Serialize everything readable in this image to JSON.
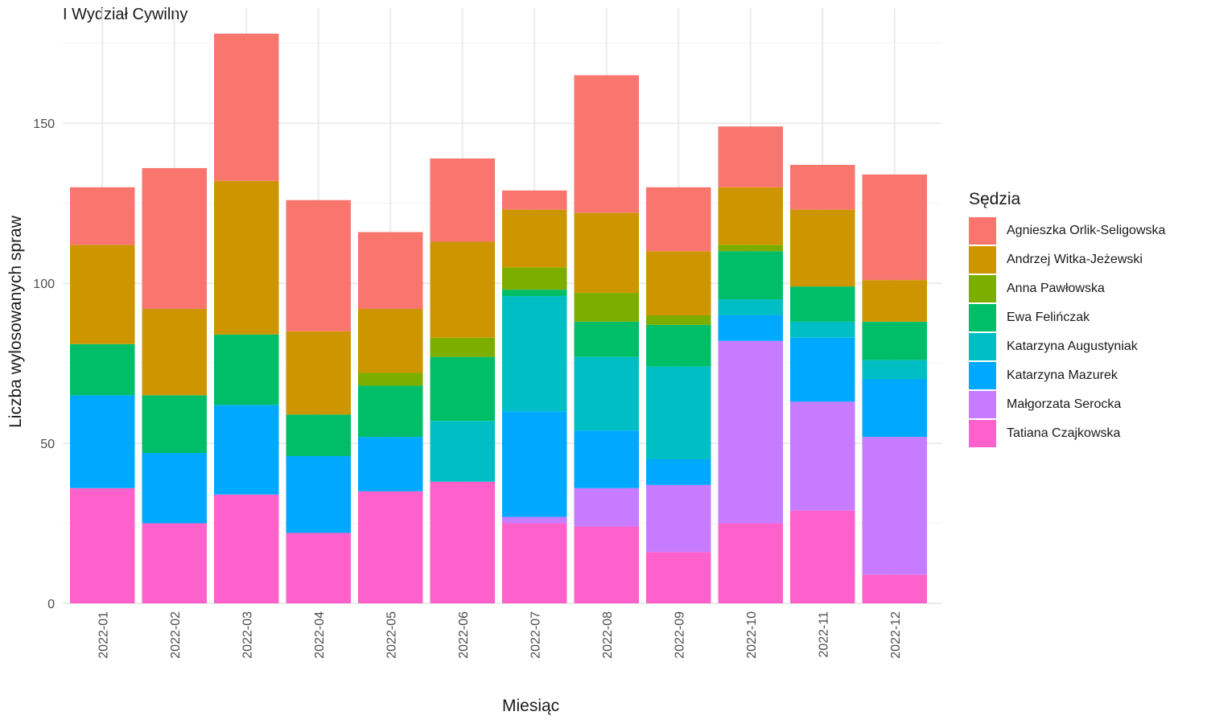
{
  "page_title": "I Wydział Cywilny",
  "chart_data": {
    "type": "bar",
    "stacked": true,
    "xlabel": "Miesiąc",
    "ylabel": "Liczba wylosowanych spraw",
    "ylim": [
      0,
      186
    ],
    "y_ticks": [
      0,
      50,
      100,
      150
    ],
    "grid": true,
    "legend_title": "Sędzia",
    "legend_position": "right",
    "categories": [
      "2022-01",
      "2022-02",
      "2022-03",
      "2022-04",
      "2022-05",
      "2022-06",
      "2022-07",
      "2022-08",
      "2022-09",
      "2022-10",
      "2022-11",
      "2022-12"
    ],
    "series": [
      {
        "name": "Tatiana Czajkowska",
        "color": "#FF61CC",
        "values": [
          36,
          25,
          34,
          22,
          35,
          38,
          25,
          24,
          16,
          25,
          29,
          9
        ]
      },
      {
        "name": "Małgorzata Serocka",
        "color": "#C77CFF",
        "values": [
          0,
          0,
          0,
          0,
          0,
          0,
          2,
          12,
          21,
          57,
          34,
          43
        ]
      },
      {
        "name": "Katarzyna Mazurek",
        "color": "#00A9FF",
        "values": [
          29,
          22,
          28,
          24,
          17,
          0,
          33,
          18,
          8,
          8,
          20,
          18
        ]
      },
      {
        "name": "Katarzyna Augustyniak",
        "color": "#00BFC4",
        "values": [
          0,
          0,
          0,
          0,
          0,
          19,
          36,
          23,
          29,
          5,
          5,
          6
        ]
      },
      {
        "name": "Ewa Felińczak",
        "color": "#00BE67",
        "values": [
          16,
          18,
          22,
          13,
          16,
          20,
          2,
          11,
          13,
          15,
          11,
          12
        ]
      },
      {
        "name": "Anna Pawłowska",
        "color": "#7CAE00",
        "values": [
          0,
          0,
          0,
          0,
          4,
          6,
          7,
          9,
          3,
          2,
          0,
          0
        ]
      },
      {
        "name": "Andrzej Witka-Jeżewski",
        "color": "#CD9600",
        "values": [
          31,
          27,
          48,
          26,
          20,
          30,
          18,
          25,
          20,
          18,
          24,
          13
        ]
      },
      {
        "name": "Agnieszka Orlik-Seligowska",
        "color": "#F8766D",
        "values": [
          18,
          44,
          46,
          41,
          24,
          26,
          6,
          43,
          20,
          19,
          14,
          33
        ]
      }
    ],
    "legend_order": [
      "Agnieszka Orlik-Seligowska",
      "Andrzej Witka-Jeżewski",
      "Anna Pawłowska",
      "Ewa Felińczak",
      "Katarzyna Augustyniak",
      "Katarzyna Mazurek",
      "Małgorzata Serocka",
      "Tatiana Czajkowska"
    ]
  }
}
